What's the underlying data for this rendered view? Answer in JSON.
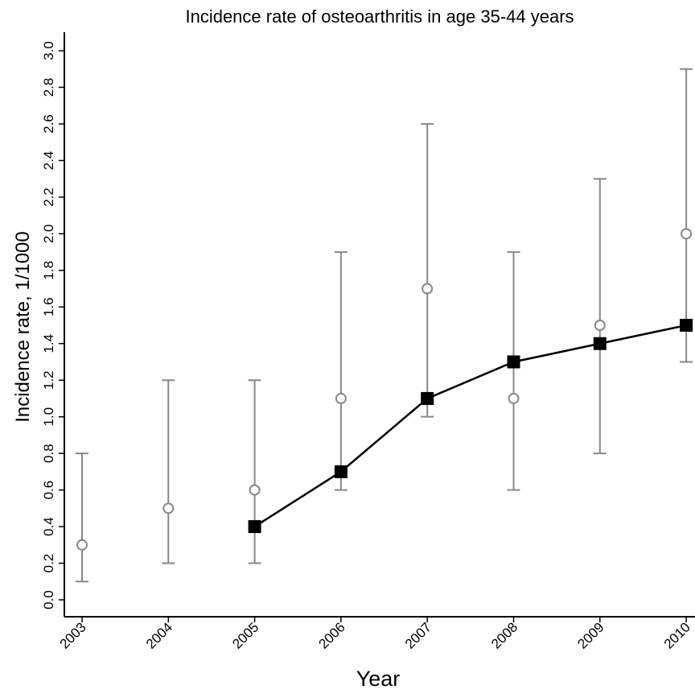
{
  "chart_data": {
    "type": "line",
    "title": "Incidence rate of osteoarthritis in age 35-44 years",
    "xlabel": "Year",
    "ylabel": "Incidence rate, 1/1000",
    "ylim": [
      0,
      3.0
    ],
    "y_ticks": [
      "0.0",
      "0.2",
      "0.4",
      "0.6",
      "0.8",
      "1.0",
      "1.2",
      "1.4",
      "1.6",
      "1.8",
      "2.0",
      "2.2",
      "2.4",
      "2.6",
      "2.8",
      "3.0"
    ],
    "categories": [
      "2003",
      "2004",
      "2005",
      "2006",
      "2007",
      "2008",
      "2009",
      "2010"
    ],
    "grid": false,
    "legend": "none",
    "series": [
      {
        "marker": "open-circle",
        "color": "#888888",
        "x": [
          "2003",
          "2004",
          "2005",
          "2006",
          "2007",
          "2008",
          "2009",
          "2010"
        ],
        "values": [
          0.3,
          0.5,
          0.6,
          1.1,
          1.7,
          1.1,
          1.5,
          2.0
        ],
        "lower": [
          0.1,
          0.2,
          0.2,
          0.6,
          1.0,
          0.6,
          0.8,
          1.3
        ],
        "upper": [
          0.8,
          1.2,
          1.2,
          1.9,
          2.6,
          1.9,
          2.3,
          2.9
        ]
      },
      {
        "marker": "filled-square",
        "color": "#000000",
        "x": [
          "2005",
          "2006",
          "2007",
          "2008",
          "2009",
          "2010"
        ],
        "values": [
          0.4,
          0.7,
          1.1,
          1.3,
          1.4,
          1.5
        ]
      }
    ]
  }
}
